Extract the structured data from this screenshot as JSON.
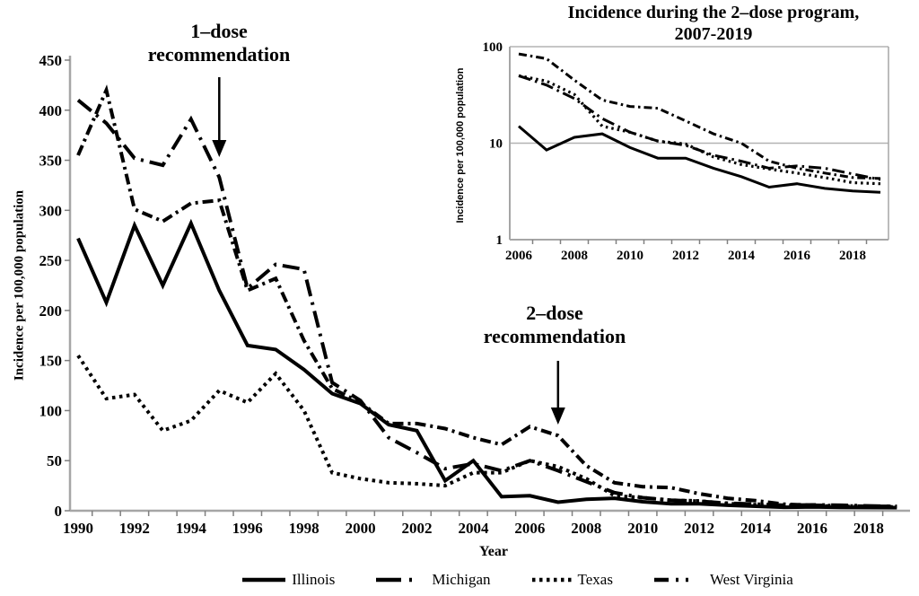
{
  "page": {
    "background": "#ffffff",
    "line_color": "#000000",
    "axis_color": "#a6a6a6",
    "grid_color": "#b3b3b3",
    "tick_color": "#808080"
  },
  "main_chart": {
    "ylabel": "Incidence per 100,000 population",
    "xlabel": "Year",
    "y_ticks": [
      0,
      50,
      100,
      150,
      200,
      250,
      300,
      350,
      400,
      450
    ],
    "x_tick_labels": [
      1990,
      1992,
      1994,
      1996,
      1998,
      2000,
      2002,
      2004,
      2006,
      2008,
      2010,
      2012,
      2014,
      2016,
      2018
    ],
    "annotations": [
      {
        "line1": "1–dose",
        "line2": "recommendation",
        "arrow_year": 1995
      },
      {
        "line1": "2–dose",
        "line2": "recommendation",
        "arrow_year": 2007
      }
    ]
  },
  "inset_chart": {
    "title": {
      "line1": "Incidence during the 2–dose program,",
      "line2": "2007-2019"
    },
    "ylabel": "Incidence per 100,000 population",
    "y_scale": "log",
    "y_ticks": [
      1,
      10,
      100
    ],
    "x_tick_labels": [
      2006,
      2008,
      2010,
      2012,
      2014,
      2016,
      2018
    ],
    "start_year": 2006
  },
  "chart_data": {
    "type": "line",
    "title": "",
    "xlabel": "Year",
    "ylabel": "Incidence per 100,000 population",
    "ylim_main": [
      0,
      450
    ],
    "ylim_inset": [
      1,
      100
    ],
    "x": [
      1990,
      1991,
      1992,
      1993,
      1994,
      1995,
      1996,
      1997,
      1998,
      1999,
      2000,
      2001,
      2002,
      2003,
      2004,
      2005,
      2006,
      2007,
      2008,
      2009,
      2010,
      2011,
      2012,
      2013,
      2014,
      2015,
      2016,
      2017,
      2018,
      2019
    ],
    "series": [
      {
        "name": "Illinois",
        "line_style": "solid",
        "values": [
          272,
          208,
          285,
          225,
          287,
          220,
          165,
          161,
          141,
          117,
          107,
          86,
          80,
          30,
          50,
          14,
          15,
          8.5,
          11.5,
          12.5,
          9,
          7,
          7,
          5.5,
          4.5,
          3.5,
          3.8,
          3.4,
          3.2,
          3.1
        ]
      },
      {
        "name": "Michigan",
        "line_style": "long-dash-dot",
        "values": [
          410,
          387,
          352,
          345,
          391,
          333,
          222,
          246,
          241,
          128,
          110,
          73,
          58,
          42,
          47,
          40,
          50,
          40,
          29,
          18,
          13,
          10.5,
          9.5,
          7.5,
          6.5,
          5.5,
          5.8,
          5.5,
          4.8,
          4.2
        ]
      },
      {
        "name": "Texas",
        "line_style": "dotted",
        "values": [
          155,
          112,
          116,
          80,
          90,
          120,
          108,
          137,
          100,
          38,
          32,
          28,
          27,
          25,
          38,
          38,
          50,
          44,
          32,
          15,
          13,
          10.5,
          9.8,
          7.2,
          6,
          5.4,
          4.9,
          4.4,
          3.9,
          3.8
        ]
      },
      {
        "name": "West Virginia",
        "line_style": "dash-dot",
        "values": [
          355,
          420,
          301,
          289,
          307,
          310,
          220,
          232,
          170,
          122,
          108,
          87,
          87,
          82,
          73,
          66,
          84,
          75,
          45,
          28,
          24,
          23,
          17,
          12.5,
          10,
          6.5,
          5.5,
          4.9,
          4.4,
          4.3
        ]
      }
    ]
  },
  "legend": {
    "items": [
      {
        "label": "Illinois",
        "line_style": "solid"
      },
      {
        "label": "Michigan",
        "line_style": "long-dash-dot"
      },
      {
        "label": "Texas",
        "line_style": "dotted"
      },
      {
        "label": "West Virginia",
        "line_style": "dash-dot"
      }
    ]
  }
}
